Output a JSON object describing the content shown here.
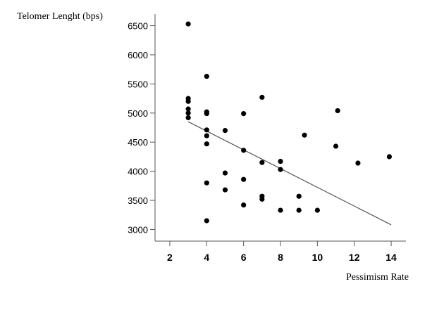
{
  "chart_data": {
    "type": "scatter",
    "title": "",
    "xlabel": "Pessimism Rate",
    "ylabel": "Telomer Lenght (bps)",
    "xlim": [
      1.2,
      14.8
    ],
    "ylim": [
      2800,
      6700
    ],
    "xticks": [
      2,
      4,
      6,
      8,
      10,
      12,
      14
    ],
    "yticks": [
      3000,
      3500,
      4000,
      4500,
      5000,
      5500,
      6000,
      6500
    ],
    "grid": false,
    "points": [
      {
        "x": 3,
        "y": 6530
      },
      {
        "x": 3,
        "y": 5250
      },
      {
        "x": 3,
        "y": 5200
      },
      {
        "x": 3,
        "y": 5070
      },
      {
        "x": 3,
        "y": 5000
      },
      {
        "x": 3,
        "y": 4920
      },
      {
        "x": 4,
        "y": 5630
      },
      {
        "x": 4,
        "y": 5020
      },
      {
        "x": 4,
        "y": 4990
      },
      {
        "x": 4,
        "y": 4710
      },
      {
        "x": 4,
        "y": 4610
      },
      {
        "x": 4,
        "y": 4470
      },
      {
        "x": 4,
        "y": 3800
      },
      {
        "x": 4,
        "y": 3150
      },
      {
        "x": 5,
        "y": 4700
      },
      {
        "x": 5,
        "y": 3970
      },
      {
        "x": 5,
        "y": 3680
      },
      {
        "x": 6,
        "y": 4990
      },
      {
        "x": 6,
        "y": 4360
      },
      {
        "x": 6,
        "y": 3860
      },
      {
        "x": 6,
        "y": 3420
      },
      {
        "x": 7,
        "y": 5270
      },
      {
        "x": 7,
        "y": 4150
      },
      {
        "x": 7,
        "y": 3570
      },
      {
        "x": 7,
        "y": 3520
      },
      {
        "x": 8,
        "y": 4170
      },
      {
        "x": 8,
        "y": 4030
      },
      {
        "x": 8,
        "y": 3330
      },
      {
        "x": 9,
        "y": 3570
      },
      {
        "x": 9,
        "y": 3330
      },
      {
        "x": 9.3,
        "y": 4620
      },
      {
        "x": 10,
        "y": 3330
      },
      {
        "x": 11,
        "y": 4430
      },
      {
        "x": 11.1,
        "y": 5040
      },
      {
        "x": 12.2,
        "y": 4140
      },
      {
        "x": 13.9,
        "y": 4250
      }
    ],
    "trend_line": {
      "x": [
        3,
        14
      ],
      "y": [
        4850,
        3080
      ]
    }
  }
}
